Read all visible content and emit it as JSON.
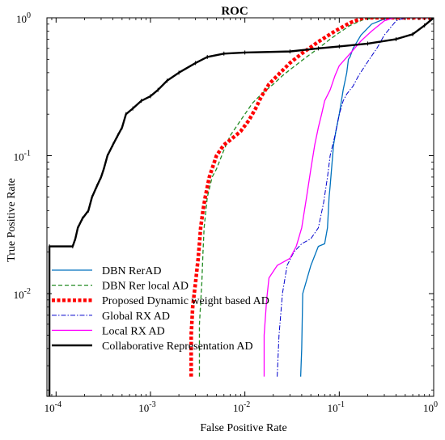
{
  "chart_data": {
    "type": "line",
    "title": "ROC",
    "xlabel": "False Positive Rate",
    "ylabel": "True Positive Rate",
    "xscale": "log",
    "yscale": "log",
    "xlim": [
      8e-05,
      1
    ],
    "ylim": [
      0.0018,
      1
    ],
    "x_ticks": [
      {
        "value": 0.0001,
        "base": "10",
        "exp": "-4"
      },
      {
        "value": 0.001,
        "base": "10",
        "exp": "-3"
      },
      {
        "value": 0.01,
        "base": "10",
        "exp": "-2"
      },
      {
        "value": 0.1,
        "base": "10",
        "exp": "-1"
      },
      {
        "value": 1,
        "base": "10",
        "exp": "0"
      }
    ],
    "y_ticks": [
      {
        "value": 0.01,
        "base": "10",
        "exp": "-2"
      },
      {
        "value": 0.1,
        "base": "10",
        "exp": "-1"
      },
      {
        "value": 1,
        "base": "10",
        "exp": "0"
      }
    ],
    "grid": false,
    "legend_position": "bottom-left",
    "series": [
      {
        "name": "DBN RerAD",
        "color": "#0072bd",
        "style": "solid",
        "points": [
          [
            0.039,
            0.0025
          ],
          [
            0.04,
            0.004
          ],
          [
            0.041,
            0.01
          ],
          [
            0.05,
            0.016
          ],
          [
            0.06,
            0.022
          ],
          [
            0.07,
            0.023
          ],
          [
            0.075,
            0.03
          ],
          [
            0.078,
            0.05
          ],
          [
            0.08,
            0.06
          ],
          [
            0.084,
            0.09
          ],
          [
            0.087,
            0.12
          ],
          [
            0.092,
            0.15
          ],
          [
            0.1,
            0.2
          ],
          [
            0.11,
            0.3
          ],
          [
            0.12,
            0.4
          ],
          [
            0.125,
            0.5
          ],
          [
            0.13,
            0.52
          ],
          [
            0.14,
            0.6
          ],
          [
            0.17,
            0.75
          ],
          [
            0.22,
            0.9
          ],
          [
            0.3,
            0.98
          ],
          [
            0.45,
            1
          ],
          [
            1,
            1
          ]
        ]
      },
      {
        "name": "DBN Rer local AD",
        "color": "#228b22",
        "style": "dashed",
        "points": [
          [
            0.0033,
            0.0025
          ],
          [
            0.0033,
            0.006
          ],
          [
            0.0035,
            0.012
          ],
          [
            0.0036,
            0.02
          ],
          [
            0.0037,
            0.03
          ],
          [
            0.004,
            0.05
          ],
          [
            0.0045,
            0.07
          ],
          [
            0.005,
            0.08
          ],
          [
            0.006,
            0.11
          ],
          [
            0.007,
            0.14
          ],
          [
            0.0085,
            0.17
          ],
          [
            0.01,
            0.2
          ],
          [
            0.012,
            0.24
          ],
          [
            0.015,
            0.28
          ],
          [
            0.02,
            0.33
          ],
          [
            0.025,
            0.38
          ],
          [
            0.03,
            0.42
          ],
          [
            0.045,
            0.52
          ],
          [
            0.06,
            0.6
          ],
          [
            0.08,
            0.7
          ],
          [
            0.1,
            0.78
          ],
          [
            0.13,
            0.88
          ],
          [
            0.18,
            0.97
          ],
          [
            0.25,
            1
          ],
          [
            1,
            1
          ]
        ]
      },
      {
        "name": "Proposed Dynamic weight based AD",
        "color": "#ff0000",
        "style": "dotted-thick",
        "points": [
          [
            0.0027,
            0.0025
          ],
          [
            0.0027,
            0.005
          ],
          [
            0.0028,
            0.008
          ],
          [
            0.003,
            0.012
          ],
          [
            0.0032,
            0.018
          ],
          [
            0.0033,
            0.023
          ],
          [
            0.0034,
            0.03
          ],
          [
            0.0036,
            0.04
          ],
          [
            0.0038,
            0.05
          ],
          [
            0.0042,
            0.07
          ],
          [
            0.005,
            0.1
          ],
          [
            0.006,
            0.12
          ],
          [
            0.007,
            0.13
          ],
          [
            0.009,
            0.15
          ],
          [
            0.011,
            0.18
          ],
          [
            0.013,
            0.22
          ],
          [
            0.015,
            0.27
          ],
          [
            0.018,
            0.33
          ],
          [
            0.022,
            0.38
          ],
          [
            0.03,
            0.47
          ],
          [
            0.04,
            0.55
          ],
          [
            0.06,
            0.67
          ],
          [
            0.09,
            0.8
          ],
          [
            0.13,
            0.92
          ],
          [
            0.18,
            1
          ],
          [
            1,
            1
          ]
        ]
      },
      {
        "name": "Global RX AD",
        "color": "#0000cd",
        "style": "dashdot",
        "points": [
          [
            0.022,
            0.0025
          ],
          [
            0.023,
            0.005
          ],
          [
            0.025,
            0.01
          ],
          [
            0.028,
            0.016
          ],
          [
            0.033,
            0.02
          ],
          [
            0.04,
            0.023
          ],
          [
            0.05,
            0.025
          ],
          [
            0.06,
            0.03
          ],
          [
            0.068,
            0.045
          ],
          [
            0.075,
            0.07
          ],
          [
            0.08,
            0.1
          ],
          [
            0.09,
            0.14
          ],
          [
            0.1,
            0.2
          ],
          [
            0.11,
            0.25
          ],
          [
            0.12,
            0.28
          ],
          [
            0.14,
            0.32
          ],
          [
            0.16,
            0.38
          ],
          [
            0.2,
            0.48
          ],
          [
            0.25,
            0.6
          ],
          [
            0.3,
            0.75
          ],
          [
            0.4,
            0.95
          ],
          [
            0.5,
            1
          ],
          [
            1,
            1
          ]
        ]
      },
      {
        "name": "Local RX AD",
        "color": "#ff00ff",
        "style": "solid",
        "points": [
          [
            0.016,
            0.0025
          ],
          [
            0.016,
            0.005
          ],
          [
            0.017,
            0.009
          ],
          [
            0.018,
            0.013
          ],
          [
            0.022,
            0.016
          ],
          [
            0.03,
            0.018
          ],
          [
            0.035,
            0.022
          ],
          [
            0.04,
            0.03
          ],
          [
            0.045,
            0.05
          ],
          [
            0.05,
            0.08
          ],
          [
            0.055,
            0.12
          ],
          [
            0.06,
            0.16
          ],
          [
            0.065,
            0.2
          ],
          [
            0.07,
            0.25
          ],
          [
            0.08,
            0.3
          ],
          [
            0.09,
            0.38
          ],
          [
            0.1,
            0.45
          ],
          [
            0.13,
            0.55
          ],
          [
            0.17,
            0.68
          ],
          [
            0.22,
            0.8
          ],
          [
            0.3,
            0.95
          ],
          [
            0.38,
            1
          ],
          [
            1,
            1
          ]
        ]
      },
      {
        "name": "Collaborative Representation AD",
        "color": "#000000",
        "style": "solid-thick",
        "points": [
          [
            8.5e-05,
            0.0018
          ],
          [
            8.5e-05,
            0.022
          ],
          [
            0.00015,
            0.022
          ],
          [
            0.00016,
            0.025
          ],
          [
            0.00017,
            0.03
          ],
          [
            0.00019,
            0.035
          ],
          [
            0.00022,
            0.04
          ],
          [
            0.00024,
            0.05
          ],
          [
            0.00027,
            0.06
          ],
          [
            0.0003,
            0.07
          ],
          [
            0.00032,
            0.08
          ],
          [
            0.00035,
            0.1
          ],
          [
            0.0004,
            0.12
          ],
          [
            0.00045,
            0.14
          ],
          [
            0.0005,
            0.16
          ],
          [
            0.00055,
            0.2
          ],
          [
            0.00065,
            0.22
          ],
          [
            0.0008,
            0.25
          ],
          [
            0.001,
            0.27
          ],
          [
            0.0012,
            0.3
          ],
          [
            0.0015,
            0.35
          ],
          [
            0.002,
            0.4
          ],
          [
            0.003,
            0.47
          ],
          [
            0.004,
            0.52
          ],
          [
            0.006,
            0.55
          ],
          [
            0.01,
            0.56
          ],
          [
            0.03,
            0.57
          ],
          [
            0.06,
            0.6
          ],
          [
            0.1,
            0.62
          ],
          [
            0.2,
            0.65
          ],
          [
            0.4,
            0.7
          ],
          [
            0.6,
            0.76
          ],
          [
            0.8,
            0.88
          ],
          [
            1,
            1
          ]
        ]
      }
    ]
  }
}
